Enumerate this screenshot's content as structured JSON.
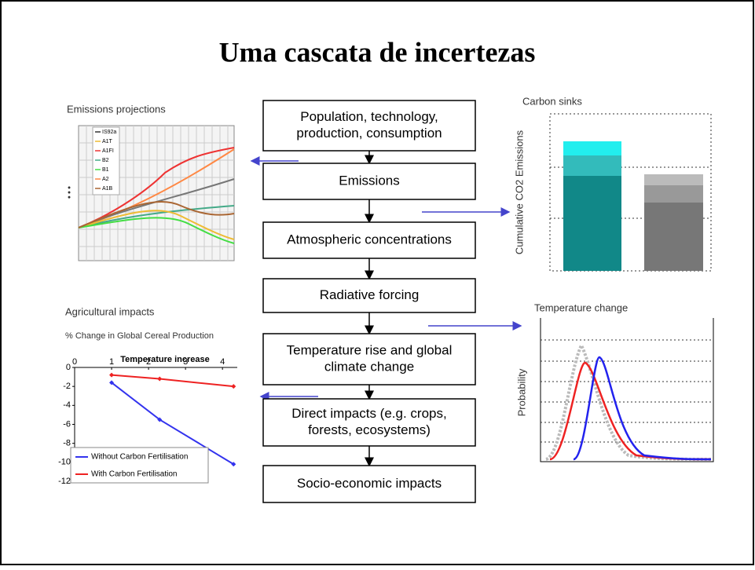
{
  "title": "Uma cascata de incertezas",
  "flow": [
    {
      "lines": [
        "Population, technology,",
        "production, consumption"
      ]
    },
    {
      "lines": [
        "Emissions"
      ]
    },
    {
      "lines": [
        "Atmospheric concentrations"
      ]
    },
    {
      "lines": [
        "Radiative forcing"
      ]
    },
    {
      "lines": [
        "Temperature rise and global",
        "climate change"
      ]
    },
    {
      "lines": [
        "Direct impacts (e.g. crops,",
        "forests, ecosystems)"
      ]
    },
    {
      "lines": [
        "Socio-economic impacts"
      ]
    }
  ],
  "emissions": {
    "label": "Emissions projections",
    "legend": [
      "IS92a",
      "A1T",
      "A1FI",
      "B2",
      "B1",
      "A2",
      "A1B"
    ]
  },
  "carbon_sinks": {
    "label": "Carbon sinks",
    "axis_label": "Cumulative CO2 Emissions"
  },
  "temperature": {
    "label": "Temperature change",
    "axis_label": "Probability"
  },
  "agriculture": {
    "label": "Agricultural impacts",
    "subtitle": "% Change in Global Cereal Production",
    "chart_data": {
      "type": "line",
      "title": "Temperature increase",
      "xlim": [
        0,
        4.4
      ],
      "xticks": [
        0,
        1,
        2,
        3,
        4
      ],
      "ylim": [
        -12,
        0
      ],
      "yticks": [
        0,
        -2,
        -4,
        -6,
        -8,
        -10,
        -12
      ],
      "series": [
        {
          "name": "Without Carbon Fertilisation",
          "color": "#3333ee",
          "x": [
            1,
            2.3,
            4.3
          ],
          "values": [
            -1.6,
            -5.5,
            -10.2
          ]
        },
        {
          "name": "With Carbon Fertilisation",
          "color": "#ee2222",
          "x": [
            1,
            2.3,
            4.3
          ],
          "values": [
            -0.8,
            -1.2,
            -2
          ]
        }
      ]
    }
  }
}
